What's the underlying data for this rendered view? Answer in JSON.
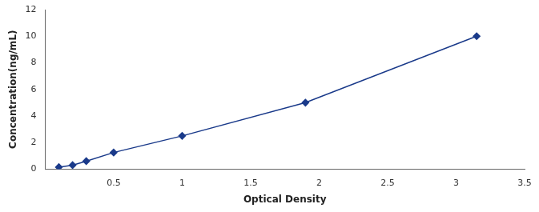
{
  "chart_data": {
    "type": "line",
    "x": [
      0.1,
      0.2,
      0.3,
      0.5,
      1.0,
      1.9,
      3.15
    ],
    "values": [
      0.15,
      0.3,
      0.6,
      1.25,
      2.5,
      5.0,
      10.0
    ],
    "color": "#1a3a8a",
    "marker": "diamond",
    "line_style": "solid",
    "xlabel": "Optical Density",
    "ylabel": "Concentration(ng/mL)",
    "xlim": [
      0,
      3.5
    ],
    "ylim": [
      0,
      12
    ],
    "xticks": [
      0.5,
      1,
      1.5,
      2,
      2.5,
      3,
      3.5
    ],
    "yticks": [
      0,
      2,
      4,
      6,
      8,
      10,
      12
    ],
    "grid": false
  }
}
